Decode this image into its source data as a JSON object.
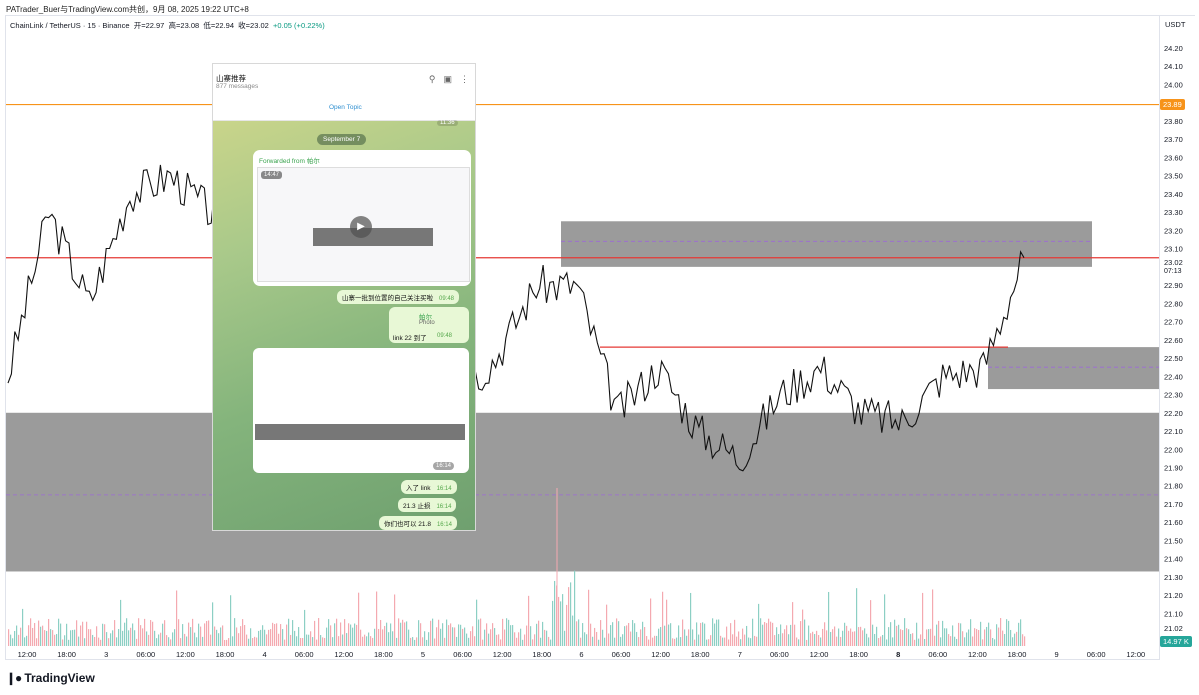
{
  "header": {
    "author_line": "PATrader_Buer与TradingView.com共创，9月 08, 2025 19:22 UTC+8",
    "symbol": "ChainLink / TetherUS · 15 · Binance",
    "open_label": "开",
    "open": "=22.97",
    "high_label": "高",
    "high": "=23.08",
    "low_label": "低",
    "low": "=22.94",
    "close_label": "收",
    "close": "=23.02",
    "change": "+0.05 (+0.22%)",
    "currency": "USDT"
  },
  "price_axis": {
    "ticks": [
      "24.20",
      "24.10",
      "24.00",
      "23.90",
      "23.80",
      "23.70",
      "23.60",
      "23.50",
      "23.40",
      "23.30",
      "23.20",
      "23.10",
      "22.90",
      "22.80",
      "22.70",
      "22.60",
      "22.50",
      "22.40",
      "22.30",
      "22.20",
      "22.10",
      "22.00",
      "21.90",
      "21.80",
      "21.70",
      "21.60",
      "21.50",
      "21.40",
      "21.30",
      "21.20",
      "21.10",
      "21.02"
    ],
    "last_price": "23.02",
    "countdown": "07:13",
    "orange_level": "23.89",
    "volume_badge": "14.97 K"
  },
  "time_axis": {
    "labels": [
      "12:00",
      "18:00",
      "3",
      "06:00",
      "12:00",
      "18:00",
      "4",
      "06:00",
      "12:00",
      "18:00",
      "5",
      "06:00",
      "12:00",
      "18:00",
      "6",
      "06:00",
      "12:00",
      "18:00",
      "7",
      "06:00",
      "12:00",
      "18:00",
      "8",
      "06:00",
      "12:00",
      "18:00",
      "9",
      "06:00",
      "12:00"
    ]
  },
  "colors": {
    "up": "#089981",
    "down": "#f23645",
    "orange_line": "#f7931a",
    "red_line": "#e53935",
    "zone_gray": "#8a8a8a",
    "purple_dash": "#9c6bd6"
  },
  "chart_data": {
    "type": "line",
    "title": "ChainLink / TetherUS · 15 · Binance",
    "xlabel": "",
    "ylabel": "USDT",
    "ylim": [
      21.0,
      24.25
    ],
    "x": [
      "2 12:00",
      "2 18:00",
      "3 00:00",
      "3 06:00",
      "3 12:00",
      "3 18:00",
      "4 00:00",
      "4 06:00",
      "4 12:00",
      "4 18:00",
      "5 00:00",
      "5 06:00",
      "5 12:00",
      "5 18:00",
      "6 00:00",
      "6 06:00",
      "6 12:00",
      "6 18:00",
      "7 00:00",
      "7 06:00",
      "7 12:00",
      "7 18:00",
      "8 00:00",
      "8 06:00",
      "8 12:00",
      "8 18:00"
    ],
    "series": [
      {
        "values": [
          22.4,
          23.3,
          22.8,
          23.4,
          23.5,
          23.3,
          23.7,
          23.85,
          23.75,
          23.2,
          22.6,
          22.3,
          22.5,
          22.9,
          22.9,
          22.2,
          22.45,
          22.1,
          21.95,
          22.3,
          22.45,
          22.2,
          22.15,
          22.4,
          22.45,
          23.05
        ]
      }
    ],
    "horizontal_levels": [
      {
        "price": 23.89,
        "color": "orange"
      },
      {
        "price": 23.05,
        "color": "red"
      },
      {
        "price": 22.56,
        "color": "red"
      }
    ],
    "zones": [
      {
        "from": 21.33,
        "to": 22.2
      },
      {
        "from": 23.0,
        "to": 23.25
      },
      {
        "from": 22.33,
        "to": 22.56
      }
    ],
    "volume_peak": "14.97 K"
  },
  "telegram": {
    "title": "山寨推荐",
    "subtitle": "877 messages",
    "open_topic": "Open Topic",
    "top_time": "11:36",
    "date_chip": "September 7",
    "forwarded": "Forwarded from",
    "forward_name": "帕尔",
    "video_time": "14:47",
    "msg1": "山寨一批到位置的自己关注买啦",
    "msg1_time": "09:48",
    "reply_name": "帕尔",
    "reply_kind": "Photo",
    "msg2": "link  22 到了",
    "msg2_time": "09:48",
    "photo_time": "16:14",
    "msg3": "入了 link",
    "msg3_time": "16:14",
    "msg4": "21.3 止损",
    "msg4_time": "16:14",
    "msg5": "你们也可以 21.8",
    "msg5_time": "16:14"
  },
  "brand": {
    "name": "TradingView"
  }
}
